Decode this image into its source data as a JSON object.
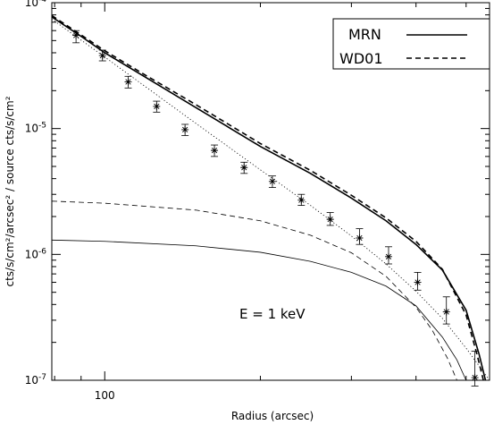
{
  "chart_data": {
    "type": "line",
    "xlabel": "Radius (arcsec)",
    "ylabel": "cts/s/cm²/arcsec² / source cts/s/cm²",
    "xscale": "log",
    "yscale": "log",
    "xlim": [
      79,
      555
    ],
    "ylim": [
      1e-07,
      0.0001
    ],
    "x_tick_labels": [
      {
        "value": 100,
        "label": "100"
      }
    ],
    "y_tick_labels": [
      {
        "value": 0.0001,
        "base": "10",
        "exp": "-4"
      },
      {
        "value": 1e-05,
        "base": "10",
        "exp": "-5"
      },
      {
        "value": 1e-06,
        "base": "10",
        "exp": "-6"
      },
      {
        "value": 1e-07,
        "base": "10",
        "exp": "-7"
      }
    ],
    "annotation": "E = 1 keV",
    "legend": {
      "placement": "top-right",
      "entries": [
        {
          "label": "MRN",
          "style": "solid"
        },
        {
          "label": "WD01",
          "style": "dashed"
        }
      ]
    },
    "observed": {
      "marker": "asterisk",
      "x": [
        88,
        99,
        111,
        126,
        143,
        163,
        186,
        211,
        240,
        273,
        311,
        354,
        403,
        458,
        520
      ],
      "y": [
        5.5e-05,
        3.8e-05,
        2.35e-05,
        1.5e-05,
        9.8e-06,
        6.7e-06,
        4.9e-06,
        3.8e-06,
        2.7e-06,
        1.9e-06,
        1.35e-06,
        9.6e-07,
        6e-07,
        3.5e-07,
        1.05e-07
      ],
      "y_err_low": [
        4.8e-05,
        3.45e-05,
        2.1e-05,
        1.35e-05,
        8.8e-06,
        6e-06,
        4.4e-06,
        3.4e-06,
        2.45e-06,
        1.7e-06,
        1.2e-06,
        8.4e-07,
        5.2e-07,
        2.8e-07,
        9e-08
      ],
      "y_err_high": [
        6e-05,
        4.2e-05,
        2.6e-05,
        1.65e-05,
        1.08e-05,
        7.4e-06,
        5.4e-06,
        4.2e-06,
        3e-06,
        2.15e-06,
        1.6e-06,
        1.15e-06,
        7.2e-07,
        4.6e-07,
        1.7e-07
      ]
    },
    "series": [
      {
        "name": "MRN",
        "role": "total",
        "style": "solid",
        "width": 1.6,
        "x": [
          79,
          90,
          100,
          120,
          150,
          200,
          250,
          300,
          350,
          400,
          450,
          500,
          530,
          545
        ],
        "y": [
          7.7e-05,
          5.4e-05,
          4e-05,
          2.55e-05,
          1.47e-05,
          7.2e-06,
          4.4e-06,
          2.8e-06,
          1.85e-06,
          1.2e-06,
          7.5e-07,
          3.6e-07,
          1.6e-07,
          1e-07
        ]
      },
      {
        "name": "WD01",
        "role": "total",
        "style": "dashed",
        "width": 1.6,
        "x": [
          79,
          90,
          100,
          120,
          150,
          200,
          250,
          300,
          350,
          400,
          450,
          500,
          525,
          540
        ],
        "y": [
          7.9e-05,
          5.55e-05,
          4.15e-05,
          2.65e-05,
          1.55e-05,
          7.6e-06,
          4.65e-06,
          2.95e-06,
          1.95e-06,
          1.27e-06,
          7.6e-07,
          3.3e-07,
          1.6e-07,
          1e-07
        ]
      },
      {
        "role": "halo",
        "style": "solid",
        "width": 0.8,
        "x": [
          79,
          100,
          150,
          200,
          250,
          300,
          350,
          400,
          450,
          480,
          500
        ],
        "y": [
          1.3e-06,
          1.27e-06,
          1.17e-06,
          1.04e-06,
          8.8e-07,
          7.2e-07,
          5.6e-07,
          3.9e-07,
          2.2e-07,
          1.45e-07,
          1e-07
        ]
      },
      {
        "role": "halo",
        "style": "dashed",
        "width": 0.8,
        "x": [
          79,
          100,
          150,
          200,
          250,
          300,
          350,
          400,
          430,
          460,
          480
        ],
        "y": [
          2.65e-06,
          2.55e-06,
          2.25e-06,
          1.85e-06,
          1.42e-06,
          1.03e-06,
          6.7e-07,
          3.8e-07,
          2.5e-07,
          1.5e-07,
          1e-07
        ]
      },
      {
        "role": "psf",
        "style": "dotted",
        "width": 0.8,
        "x": [
          79,
          100,
          150,
          200,
          250,
          300,
          350,
          400,
          450,
          500,
          555
        ],
        "y": [
          7.4e-05,
          3.7e-05,
          1.1e-05,
          4.7e-06,
          2.45e-06,
          1.4e-06,
          8.4e-07,
          5.1e-07,
          3.1e-07,
          1.8e-07,
          1e-07
        ]
      }
    ]
  }
}
